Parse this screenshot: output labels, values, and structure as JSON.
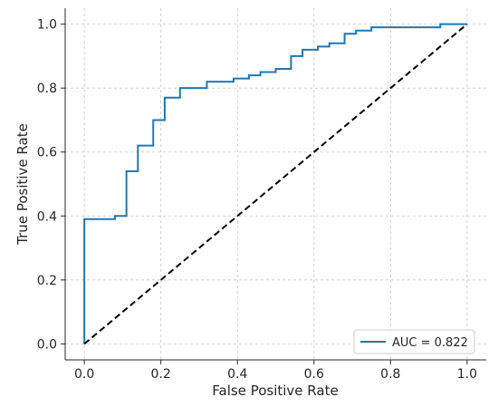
{
  "chart_data": {
    "type": "line",
    "title": "",
    "xlabel": "False Positive Rate",
    "ylabel": "True Positive Rate",
    "xlim": [
      -0.05,
      1.05
    ],
    "ylim": [
      -0.05,
      1.05
    ],
    "grid": true,
    "legend_position": "bottom-right",
    "x_ticks": [
      0.0,
      0.2,
      0.4,
      0.6,
      0.8,
      1.0
    ],
    "x_tick_labels": [
      "0.0",
      "0.2",
      "0.4",
      "0.6",
      "0.8",
      "1.0"
    ],
    "y_ticks": [
      0.0,
      0.2,
      0.4,
      0.6,
      0.8,
      1.0
    ],
    "y_tick_labels": [
      "0.0",
      "0.2",
      "0.4",
      "0.6",
      "0.8",
      "1.0"
    ],
    "series": [
      {
        "name": "AUC = 0.822",
        "color": "#1f77b4",
        "style": "solid",
        "x": [
          0.0,
          0.0,
          0.04,
          0.04,
          0.08,
          0.08,
          0.11,
          0.11,
          0.14,
          0.14,
          0.18,
          0.18,
          0.21,
          0.21,
          0.25,
          0.25,
          0.29,
          0.29,
          0.32,
          0.32,
          0.39,
          0.39,
          0.43,
          0.43,
          0.46,
          0.46,
          0.5,
          0.5,
          0.54,
          0.54,
          0.57,
          0.57,
          0.61,
          0.61,
          0.64,
          0.64,
          0.68,
          0.68,
          0.71,
          0.71,
          0.75,
          0.75,
          0.79,
          0.79,
          0.93,
          0.93,
          1.0
        ],
        "y": [
          0.0,
          0.39,
          0.39,
          0.39,
          0.39,
          0.4,
          0.4,
          0.54,
          0.54,
          0.62,
          0.62,
          0.7,
          0.7,
          0.77,
          0.77,
          0.8,
          0.8,
          0.8,
          0.8,
          0.82,
          0.82,
          0.83,
          0.83,
          0.84,
          0.84,
          0.85,
          0.85,
          0.86,
          0.86,
          0.9,
          0.9,
          0.92,
          0.92,
          0.93,
          0.93,
          0.94,
          0.94,
          0.97,
          0.97,
          0.98,
          0.98,
          0.99,
          0.99,
          0.99,
          0.99,
          1.0,
          1.0
        ]
      },
      {
        "color": "#000000",
        "style": "dashed",
        "x": [
          0.0,
          1.0
        ],
        "y": [
          0.0,
          1.0
        ]
      }
    ]
  }
}
